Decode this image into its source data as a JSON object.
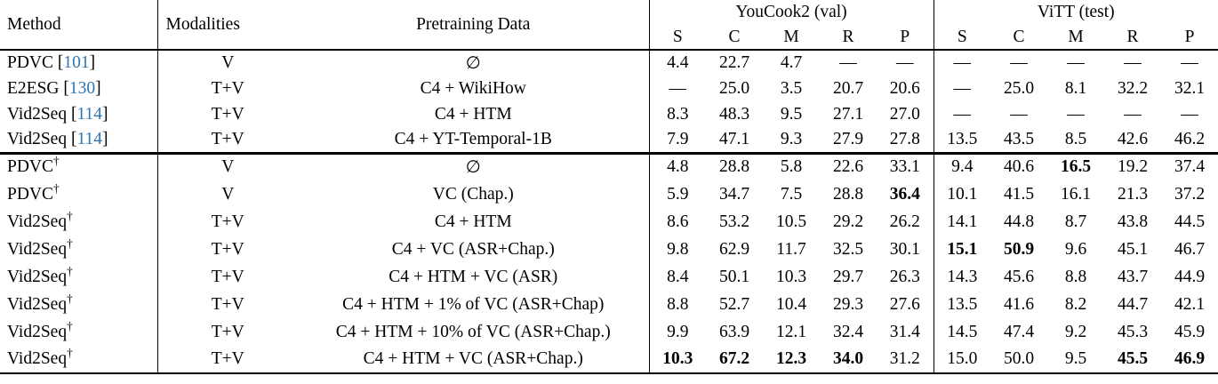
{
  "page": {
    "background": "#ffffff",
    "text_color": "#000000",
    "cite_color": "#2b76b5"
  },
  "table": {
    "headers": {
      "method": "Method",
      "modalities": "Modalities",
      "pretraining": "Pretraining Data"
    },
    "cite_brackets": [
      "[",
      "]"
    ],
    "dagger_glyph": "†",
    "groups": [
      {
        "label": "YouCook2 (val)",
        "metrics": [
          "S",
          "C",
          "M",
          "R",
          "P"
        ]
      },
      {
        "label": "ViTT (test)",
        "metrics": [
          "S",
          "C",
          "M",
          "R",
          "P"
        ]
      }
    ],
    "sections": [
      {
        "rows": [
          {
            "method": "PDVC",
            "cite": "101",
            "dagger": false,
            "modalities": "V",
            "pretraining": "∅",
            "yc": [
              "4.4",
              "22.7",
              "4.7",
              "—",
              "—"
            ],
            "yc_bold": [],
            "vitt": [
              "—",
              "—",
              "—",
              "—",
              "—"
            ],
            "vitt_bold": []
          },
          {
            "method": "E2ESG",
            "cite": "130",
            "dagger": false,
            "modalities": "T+V",
            "pretraining": "C4 + WikiHow",
            "yc": [
              "—",
              "25.0",
              "3.5",
              "20.7",
              "20.6"
            ],
            "yc_bold": [],
            "vitt": [
              "—",
              "25.0",
              "8.1",
              "32.2",
              "32.1"
            ],
            "vitt_bold": []
          },
          {
            "method": "Vid2Seq",
            "cite": "114",
            "dagger": false,
            "modalities": "T+V",
            "pretraining": "C4 + HTM",
            "yc": [
              "8.3",
              "48.3",
              "9.5",
              "27.1",
              "27.0"
            ],
            "yc_bold": [],
            "vitt": [
              "—",
              "—",
              "—",
              "—",
              "—"
            ],
            "vitt_bold": []
          },
          {
            "method": "Vid2Seq",
            "cite": "114",
            "dagger": false,
            "modalities": "T+V",
            "pretraining": "C4 + YT-Temporal-1B",
            "yc": [
              "7.9",
              "47.1",
              "9.3",
              "27.9",
              "27.8"
            ],
            "yc_bold": [],
            "vitt": [
              "13.5",
              "43.5",
              "8.5",
              "42.6",
              "46.2"
            ],
            "vitt_bold": []
          }
        ]
      },
      {
        "rows": [
          {
            "method": "PDVC",
            "cite": "",
            "dagger": true,
            "modalities": "V",
            "pretraining": "∅",
            "yc": [
              "4.8",
              "28.8",
              "5.8",
              "22.6",
              "33.1"
            ],
            "yc_bold": [],
            "vitt": [
              "9.4",
              "40.6",
              "16.5",
              "19.2",
              "37.4"
            ],
            "vitt_bold": [
              2
            ]
          },
          {
            "method": "PDVC",
            "cite": "",
            "dagger": true,
            "modalities": "V",
            "pretraining": "VC (Chap.)",
            "yc": [
              "5.9",
              "34.7",
              "7.5",
              "28.8",
              "36.4"
            ],
            "yc_bold": [
              4
            ],
            "vitt": [
              "10.1",
              "41.5",
              "16.1",
              "21.3",
              "37.2"
            ],
            "vitt_bold": []
          },
          {
            "method": "Vid2Seq",
            "cite": "",
            "dagger": true,
            "modalities": "T+V",
            "pretraining": "C4 + HTM",
            "yc": [
              "8.6",
              "53.2",
              "10.5",
              "29.2",
              "26.2"
            ],
            "yc_bold": [],
            "vitt": [
              "14.1",
              "44.8",
              "8.7",
              "43.8",
              "44.5"
            ],
            "vitt_bold": []
          },
          {
            "method": "Vid2Seq",
            "cite": "",
            "dagger": true,
            "modalities": "T+V",
            "pretraining": "C4 + VC (ASR+Chap.)",
            "yc": [
              "9.8",
              "62.9",
              "11.7",
              "32.5",
              "30.1"
            ],
            "yc_bold": [],
            "vitt": [
              "15.1",
              "50.9",
              "9.6",
              "45.1",
              "46.7"
            ],
            "vitt_bold": [
              0,
              1
            ]
          },
          {
            "method": "Vid2Seq",
            "cite": "",
            "dagger": true,
            "modalities": "T+V",
            "pretraining": "C4 + HTM + VC (ASR)",
            "yc": [
              "8.4",
              "50.1",
              "10.3",
              "29.7",
              "26.3"
            ],
            "yc_bold": [],
            "vitt": [
              "14.3",
              "45.6",
              "8.8",
              "43.7",
              "44.9"
            ],
            "vitt_bold": []
          },
          {
            "method": "Vid2Seq",
            "cite": "",
            "dagger": true,
            "modalities": "T+V",
            "pretraining": "C4 + HTM + 1% of VC (ASR+Chap)",
            "yc": [
              "8.8",
              "52.7",
              "10.4",
              "29.3",
              "27.6"
            ],
            "yc_bold": [],
            "vitt": [
              "13.5",
              "41.6",
              "8.2",
              "44.7",
              "42.1"
            ],
            "vitt_bold": []
          },
          {
            "method": "Vid2Seq",
            "cite": "",
            "dagger": true,
            "modalities": "T+V",
            "pretraining": "C4 + HTM + 10% of VC (ASR+Chap.)",
            "yc": [
              "9.9",
              "63.9",
              "12.1",
              "32.4",
              "31.4"
            ],
            "yc_bold": [],
            "vitt": [
              "14.5",
              "47.4",
              "9.2",
              "45.3",
              "45.9"
            ],
            "vitt_bold": []
          },
          {
            "method": "Vid2Seq",
            "cite": "",
            "dagger": true,
            "modalities": "T+V",
            "pretraining": "C4 + HTM + VC (ASR+Chap.)",
            "yc": [
              "10.3",
              "67.2",
              "12.3",
              "34.0",
              "31.2"
            ],
            "yc_bold": [
              0,
              1,
              2,
              3
            ],
            "vitt": [
              "15.0",
              "50.0",
              "9.5",
              "45.5",
              "46.9"
            ],
            "vitt_bold": [
              3,
              4
            ]
          }
        ]
      }
    ]
  }
}
